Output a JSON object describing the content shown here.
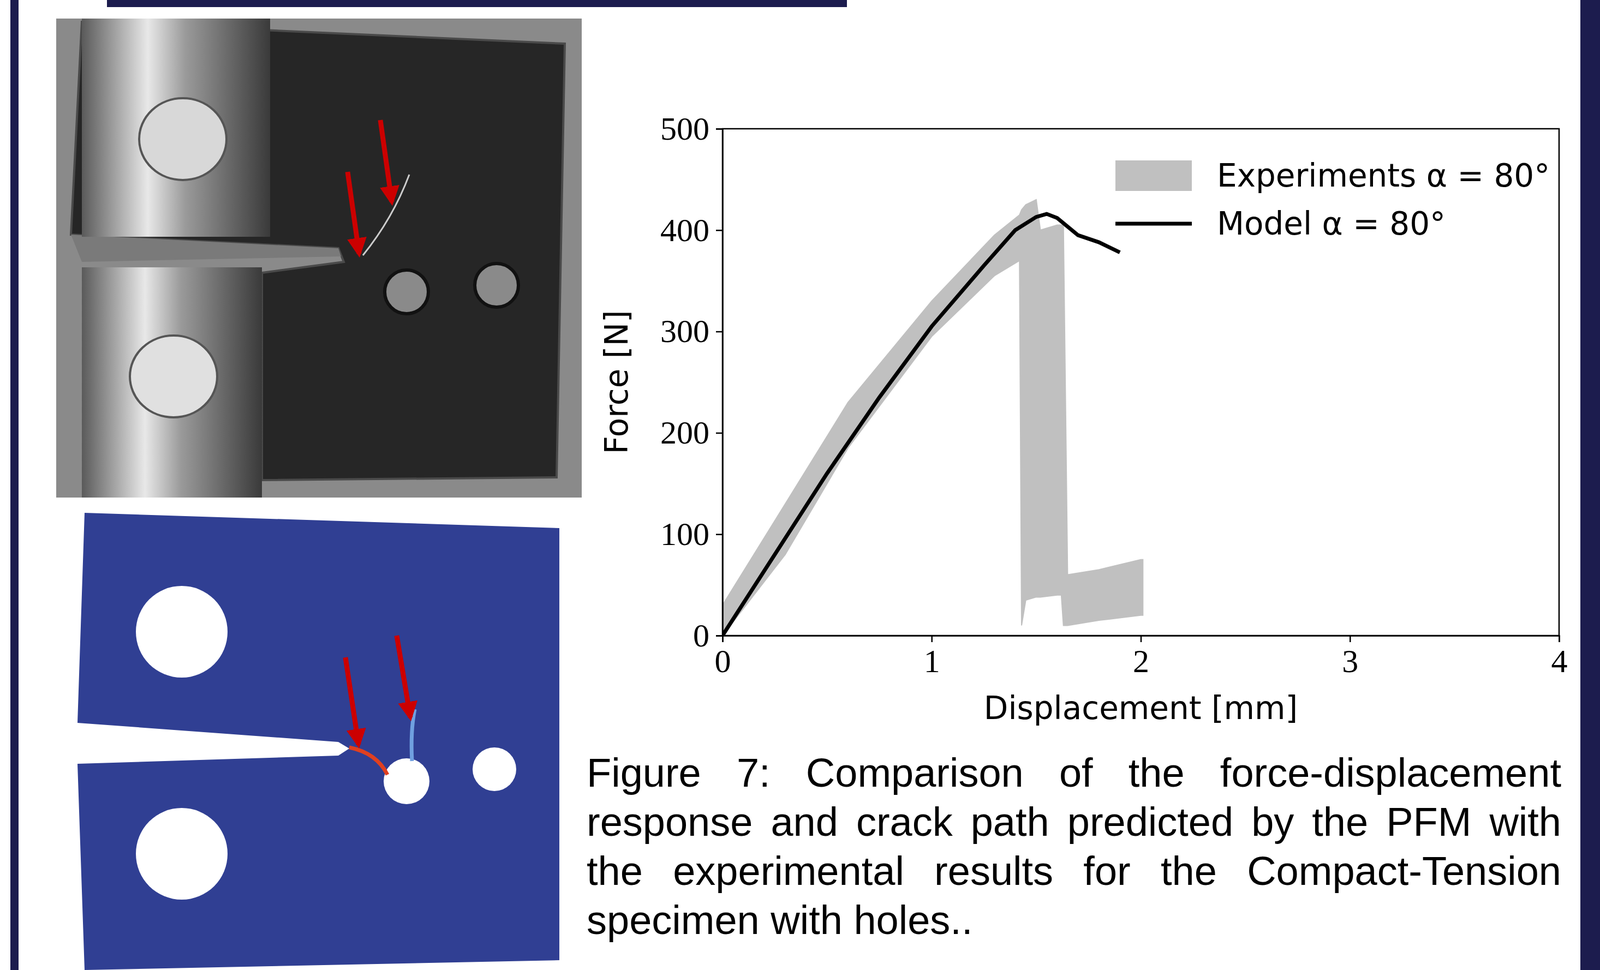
{
  "chart_data": {
    "type": "line",
    "x_label": "Displacement [mm]",
    "y_label": "Force [N]",
    "xlim": [
      0,
      4
    ],
    "ylim": [
      0,
      500
    ],
    "xticks": [
      0,
      1,
      2,
      3,
      4
    ],
    "yticks": [
      0,
      100,
      200,
      300,
      400,
      500
    ],
    "legend": "upper right",
    "series": [
      {
        "name": "Experiments α = 80°",
        "type": "band",
        "color": "#c0c0c0",
        "x": [
          0,
          0.3,
          0.6,
          1.0,
          1.3,
          1.42,
          1.43,
          1.45,
          1.5,
          1.52,
          1.6,
          1.62,
          1.63,
          1.65,
          1.8,
          2.0,
          2.01
        ],
        "lower": [
          0,
          80,
          185,
          295,
          355,
          370,
          10,
          35,
          38,
          38,
          40,
          40,
          10,
          10,
          15,
          20,
          20
        ],
        "upper": [
          30,
          130,
          230,
          330,
          395,
          415,
          420,
          425,
          430,
          400,
          405,
          405,
          405,
          60,
          65,
          75,
          75
        ]
      },
      {
        "name": "Model α = 80°",
        "type": "line",
        "color": "#000000",
        "x": [
          0,
          0.25,
          0.5,
          0.75,
          1.0,
          1.25,
          1.4,
          1.5,
          1.55,
          1.6,
          1.7,
          1.8,
          1.9
        ],
        "values": [
          0,
          80,
          160,
          235,
          305,
          365,
          400,
          413,
          416,
          412,
          395,
          388,
          378
        ]
      }
    ],
    "caption": "Figure 7: Comparison of the force-displacement response and crack path predicted by the PFM with the experimental results for the Compact-Tension specimen with holes.."
  }
}
